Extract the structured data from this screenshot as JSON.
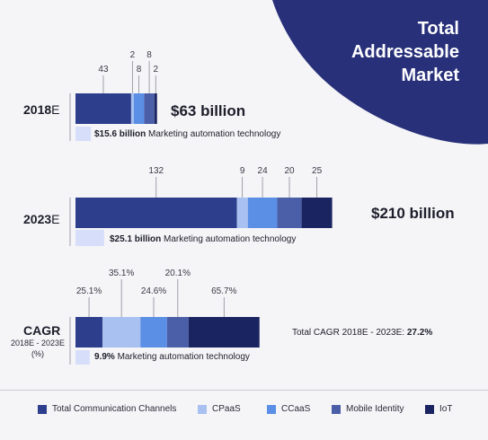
{
  "title_lines": [
    "Total",
    "Addressable",
    "Market"
  ],
  "colors": {
    "title_bg": "#28307a",
    "Total Communication Channels": "#2d3e8c",
    "CPaaS": "#a9c1f0",
    "CCaaS": "#5b8fe6",
    "Mobile Identity": "#4a5fa8",
    "IoT": "#1a2461",
    "Marketing automation technology": "#d7defa"
  },
  "chart_data": {
    "type": "bar",
    "orientation": "horizontal-stacked",
    "series_names": [
      "Total Communication Channels",
      "CPaaS",
      "CCaaS",
      "Mobile Identity",
      "IoT"
    ],
    "rows": [
      {
        "label": "2018",
        "label_suffix": "E",
        "values": [
          43,
          2,
          8,
          8,
          2
        ],
        "value_labels": [
          "43",
          "2",
          "8",
          "8",
          "2"
        ],
        "total_label": "$63 billion",
        "note_value": "$15.6 billion",
        "note_text": " Marketing automation technology",
        "note_numeric": 15.6
      },
      {
        "label": "2023",
        "label_suffix": "E",
        "values": [
          132,
          9,
          24,
          20,
          25
        ],
        "value_labels": [
          "132",
          "9",
          "24",
          "20",
          "25"
        ],
        "total_label": "$210 billion",
        "note_value": "$25.1 billion",
        "note_text": " Marketing automation technology",
        "note_numeric": 25.1
      },
      {
        "label": "CAGR",
        "sublabel_lines": [
          "2018E - 2023E",
          "(%)"
        ],
        "values": [
          25.1,
          35.1,
          24.6,
          20.1,
          65.7
        ],
        "value_labels": [
          "25.1%",
          "35.1%",
          "24.6%",
          "20.1%",
          "65.7%"
        ],
        "total_prefix": "Total CAGR 2018E - 2023E: ",
        "total_value": "27.2%",
        "note_value": "9.9%",
        "note_text": " Marketing automation technology",
        "note_numeric": 9.9
      }
    ]
  },
  "legend": [
    "Total Communication Channels",
    "CPaaS",
    "CCaaS",
    "Mobile Identity",
    "IoT"
  ]
}
